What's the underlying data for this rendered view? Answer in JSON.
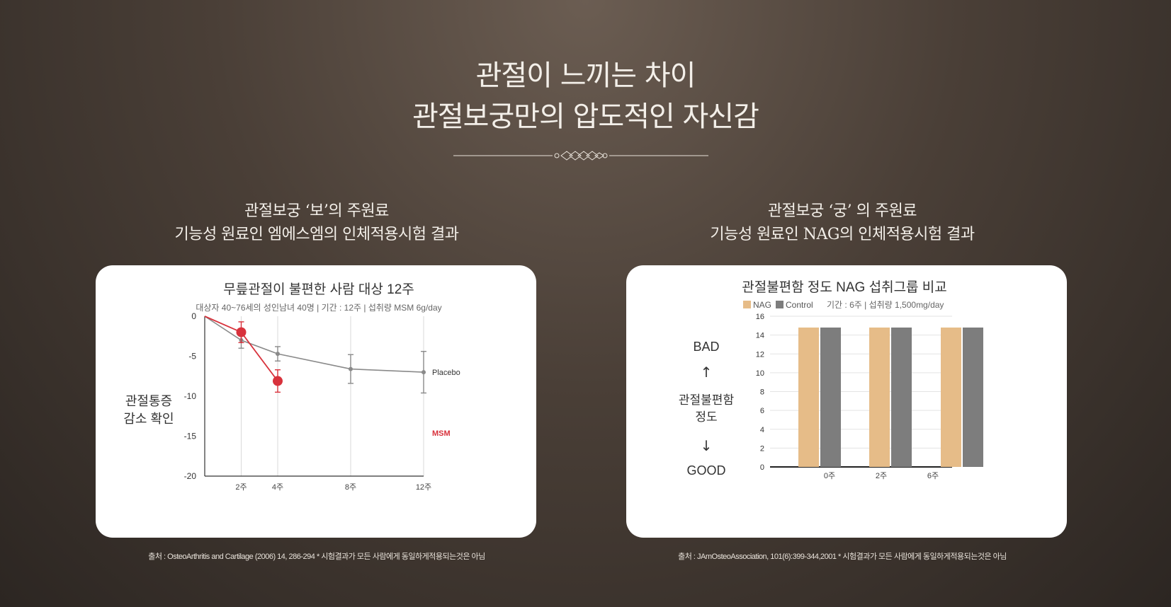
{
  "headline": {
    "line1": "관절이 느끼는 차이",
    "line2": "관절보궁만의 압도적인 자신감"
  },
  "left": {
    "subtitle_line1": "관절보궁 ‘보’의 주원료",
    "subtitle_line2": "기능성 원료인 엠에스엠의 인체적용시험 결과",
    "source": "출처 : OsteoArthritis and Cartilage (2006) 14, 286-294 * 시험결과가 모든 사람에게 동일하게적용되는것은 아님"
  },
  "right": {
    "subtitle_line1": "관절보궁 ‘궁’ 의 주원료",
    "subtitle_line2": "기능성 원료인 NAG의 인체적용시험 결과",
    "source": "출처 : JAmOsteoAssociation, 101(6):399-344,2001 * 시험결과가 모든 사람에게 동일하게적용되는것은 아님"
  },
  "colors": {
    "msm": "#d8323c",
    "placebo": "#8a8a8a",
    "nag": "#e6bc88",
    "control": "#7d7d7d"
  },
  "chart_data": [
    {
      "type": "line",
      "title": "무릎관절이 불편한 사람 대상 12주",
      "subtitle": "대상자 40~76세의 성인남녀 40명  |  기간 : 12주  |  섭취량 MSM 6g/day",
      "ylabel_line1": "관절통증",
      "ylabel_line2": "감소 확인",
      "ylim": [
        -20,
        0
      ],
      "yticks": [
        0,
        -5,
        -10,
        -15,
        -20
      ],
      "ytick_labels": [
        "0",
        "-5",
        "-10",
        "-15",
        "-20"
      ],
      "x": [
        0,
        2,
        4,
        8,
        12
      ],
      "xtick_labels": [
        "",
        "2주",
        "4주",
        "8주",
        "12주"
      ],
      "series": [
        {
          "name": "Placebo",
          "x": [
            0,
            2,
            4,
            8,
            12
          ],
          "values": [
            0,
            -3,
            -4.7,
            -6.6,
            -7
          ],
          "error": [
            0,
            1,
            0.9,
            1.8,
            2.6
          ]
        },
        {
          "name": "MSM",
          "x": [
            0,
            2,
            4
          ],
          "values": [
            0,
            -2,
            -8.1
          ],
          "error": [
            0,
            1.3,
            1.4
          ]
        }
      ]
    },
    {
      "type": "bar",
      "title": "관절불편함 정도 NAG 섭취그룹 비교",
      "legend": [
        "NAG",
        "Control"
      ],
      "meta": "기간 : 6주  |  섭취량 1,500mg/day",
      "side_top": "BAD",
      "side_arrow_up": "↑",
      "side_label_line1": "관절불편함",
      "side_label_line2": "정도",
      "side_arrow_down": "↓",
      "side_bottom": "GOOD",
      "categories": [
        "0주",
        "2주",
        "6주"
      ],
      "ylim": [
        0,
        16
      ],
      "yticks": [
        0,
        2,
        4,
        6,
        8,
        10,
        12,
        14,
        16
      ],
      "series": [
        {
          "name": "NAG",
          "values": [
            14.8,
            14.8,
            14.8
          ]
        },
        {
          "name": "Control",
          "values": [
            14.8,
            14.8,
            14.8
          ]
        }
      ]
    }
  ]
}
